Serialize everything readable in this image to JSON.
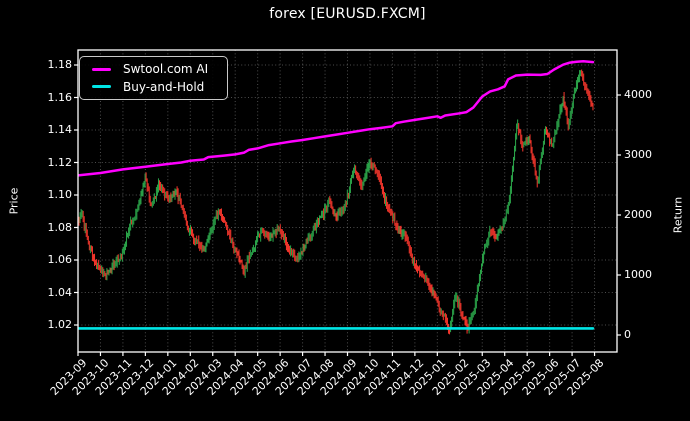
{
  "title": "forex [EURUSD.FXCM]",
  "colors": {
    "background": "#000000",
    "text": "#ffffff",
    "axis": "#ffffff",
    "grid": "rgba(255,255,255,0.30)",
    "ai_line": "#ff00ff",
    "buyhold_line": "#00e6e6",
    "candle_up": "#2aa148",
    "candle_down": "#ef352b"
  },
  "legend": {
    "items": [
      {
        "label": "Swtool.com AI",
        "color": "#ff00ff"
      },
      {
        "label": "Buy-and-Hold",
        "color": "#00e6e6"
      }
    ]
  },
  "chart_data": {
    "type": "candlestick+line",
    "title": "forex [EURUSD.FXCM]",
    "grid": true,
    "legend_position": "upper-left",
    "x_axis": {
      "tick_labels": [
        "2023-09",
        "2023-10",
        "2023-11",
        "2023-12",
        "2024-01",
        "2024-02",
        "2024-03",
        "2024-04",
        "2024-05",
        "2024-06",
        "2024-07",
        "2024-08",
        "2024-09",
        "2024-10",
        "2024-11",
        "2024-12",
        "2025-01",
        "2025-02",
        "2025-03",
        "2025-04",
        "2025-05",
        "2025-06",
        "2025-07",
        "2025-08"
      ],
      "rotation_deg": 45,
      "domain_months": [
        0,
        24
      ],
      "data_end_month": 22.93
    },
    "left_axis": {
      "label": "Price",
      "ticks": [
        1.02,
        1.04,
        1.06,
        1.08,
        1.1,
        1.12,
        1.14,
        1.16,
        1.18
      ],
      "tick_labels": [
        "1.02",
        "1.04",
        "1.06",
        "1.08",
        "1.10",
        "1.12",
        "1.14",
        "1.16",
        "1.18"
      ],
      "range": [
        1.0034,
        1.1892
      ]
    },
    "right_axis": {
      "label": "Return",
      "ticks": [
        0,
        1000,
        2000,
        3000,
        4000
      ],
      "tick_labels": [
        "0",
        "1000",
        "2000",
        "3000",
        "4000"
      ],
      "range": [
        -283,
        4750
      ]
    },
    "series": [
      {
        "name": "Swtool.com AI",
        "type": "line",
        "axis": "right",
        "color": "#ff00ff",
        "line_width": 2.5,
        "points": [
          [
            0,
            2660
          ],
          [
            1,
            2700
          ],
          [
            2,
            2760
          ],
          [
            3,
            2805
          ],
          [
            4,
            2850
          ],
          [
            4.6,
            2875
          ],
          [
            5,
            2905
          ],
          [
            5.6,
            2925
          ],
          [
            5.8,
            2965
          ],
          [
            6.5,
            2990
          ],
          [
            7,
            3010
          ],
          [
            7.4,
            3040
          ],
          [
            7.6,
            3085
          ],
          [
            8,
            3110
          ],
          [
            8.5,
            3165
          ],
          [
            9,
            3195
          ],
          [
            9.5,
            3225
          ],
          [
            10,
            3250
          ],
          [
            10.5,
            3280
          ],
          [
            11,
            3310
          ],
          [
            11.5,
            3340
          ],
          [
            12,
            3370
          ],
          [
            12.5,
            3400
          ],
          [
            13,
            3430
          ],
          [
            13.5,
            3452
          ],
          [
            14,
            3478
          ],
          [
            14.15,
            3530
          ],
          [
            14.5,
            3555
          ],
          [
            15,
            3585
          ],
          [
            15.5,
            3615
          ],
          [
            16,
            3645
          ],
          [
            16.15,
            3620
          ],
          [
            16.35,
            3658
          ],
          [
            17,
            3695
          ],
          [
            17.3,
            3715
          ],
          [
            17.6,
            3790
          ],
          [
            18,
            3975
          ],
          [
            18.35,
            4060
          ],
          [
            18.7,
            4095
          ],
          [
            19,
            4145
          ],
          [
            19.15,
            4260
          ],
          [
            19.5,
            4325
          ],
          [
            20,
            4340
          ],
          [
            20.6,
            4335
          ],
          [
            20.9,
            4350
          ],
          [
            21.2,
            4425
          ],
          [
            21.6,
            4505
          ],
          [
            21.9,
            4540
          ],
          [
            22.2,
            4555
          ],
          [
            22.5,
            4562
          ],
          [
            22.93,
            4548
          ]
        ]
      },
      {
        "name": "Buy-and-Hold",
        "type": "line",
        "axis": "right",
        "color": "#00e6e6",
        "line_width": 2.6,
        "points": [
          [
            0,
            110
          ],
          [
            22.93,
            110
          ]
        ]
      },
      {
        "name": "EURUSD price",
        "type": "candlestick",
        "axis": "left",
        "up_color": "#2aa148",
        "down_color": "#ef352b",
        "candles": 500,
        "seed": 20230901,
        "close_keypoints": [
          [
            0,
            1.084
          ],
          [
            0.15,
            1.091
          ],
          [
            0.45,
            1.072
          ],
          [
            0.8,
            1.057
          ],
          [
            1.2,
            1.046
          ],
          [
            1.5,
            1.051
          ],
          [
            1.9,
            1.063
          ],
          [
            2.3,
            1.082
          ],
          [
            2.7,
            1.093
          ],
          [
            3.0,
            1.11
          ],
          [
            3.25,
            1.089
          ],
          [
            3.6,
            1.104
          ],
          [
            4.0,
            1.095
          ],
          [
            4.4,
            1.101
          ],
          [
            4.8,
            1.084
          ],
          [
            5.2,
            1.073
          ],
          [
            5.6,
            1.07
          ],
          [
            6.0,
            1.082
          ],
          [
            6.3,
            1.091
          ],
          [
            6.7,
            1.079
          ],
          [
            7.1,
            1.068
          ],
          [
            7.4,
            1.057
          ],
          [
            7.8,
            1.071
          ],
          [
            8.2,
            1.084
          ],
          [
            8.6,
            1.077
          ],
          [
            9.0,
            1.082
          ],
          [
            9.4,
            1.07
          ],
          [
            9.8,
            1.064
          ],
          [
            10.3,
            1.076
          ],
          [
            10.7,
            1.085
          ],
          [
            11.2,
            1.098
          ],
          [
            11.5,
            1.088
          ],
          [
            11.9,
            1.095
          ],
          [
            12.3,
            1.118
          ],
          [
            12.6,
            1.105
          ],
          [
            13.0,
            1.119
          ],
          [
            13.4,
            1.11
          ],
          [
            13.8,
            1.093
          ],
          [
            14.2,
            1.083
          ],
          [
            14.6,
            1.076
          ],
          [
            15.0,
            1.06
          ],
          [
            15.4,
            1.053
          ],
          [
            15.8,
            1.043
          ],
          [
            16.2,
            1.032
          ],
          [
            16.55,
            1.022
          ],
          [
            16.8,
            1.042
          ],
          [
            17.05,
            1.032
          ],
          [
            17.35,
            1.019
          ],
          [
            17.7,
            1.036
          ],
          [
            18.0,
            1.062
          ],
          [
            18.35,
            1.082
          ],
          [
            18.6,
            1.074
          ],
          [
            18.9,
            1.082
          ],
          [
            19.2,
            1.096
          ],
          [
            19.55,
            1.145
          ],
          [
            19.8,
            1.132
          ],
          [
            20.1,
            1.137
          ],
          [
            20.45,
            1.112
          ],
          [
            20.8,
            1.145
          ],
          [
            21.1,
            1.132
          ],
          [
            21.4,
            1.15
          ],
          [
            21.6,
            1.162
          ],
          [
            21.85,
            1.146
          ],
          [
            22.1,
            1.168
          ],
          [
            22.35,
            1.18
          ],
          [
            22.6,
            1.171
          ],
          [
            22.93,
            1.159
          ]
        ]
      }
    ]
  }
}
